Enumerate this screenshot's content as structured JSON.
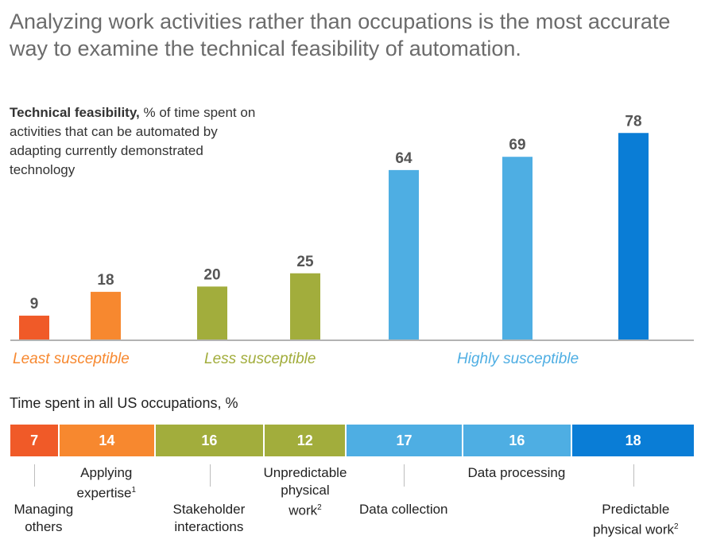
{
  "title": "Analyzing work activities rather than occupations is the most accurate way to examine the technical feasibility of automation.",
  "ylabel_bold": "Technical feasibility,",
  "ylabel_rest": " % of time spent on activities that can be automated by adapting currently demonstrated technology",
  "section2_title": "Time spent in all US occupations, %",
  "group_labels": {
    "least": "Least susceptible",
    "less": "Less susceptible",
    "highly": "Highly susceptible"
  },
  "colors": {
    "red": "#f05a28",
    "orange": "#f7882f",
    "green": "#a2ad3c",
    "lightblue": "#4eaee3",
    "blue": "#0a7dd6"
  },
  "chart_data": [
    {
      "type": "bar",
      "title": "Technical feasibility",
      "ylabel": "% of time spent on activities that can be automated by adapting currently demonstrated technology",
      "categories": [
        "Managing others",
        "Applying expertise",
        "Stakeholder interactions",
        "Unpredictable physical work",
        "Data collection",
        "Data processing",
        "Predictable physical work"
      ],
      "values": [
        9,
        18,
        20,
        25,
        64,
        69,
        78
      ],
      "groups": [
        "Least susceptible",
        "Least susceptible",
        "Less susceptible",
        "Less susceptible",
        "Highly susceptible",
        "Highly susceptible",
        "Highly susceptible"
      ],
      "ylim": [
        0,
        80
      ]
    },
    {
      "type": "bar",
      "title": "Time spent in all US occupations, %",
      "stacked": true,
      "categories": [
        "Managing others",
        "Applying expertise",
        "Stakeholder interactions",
        "Unpredictable physical work",
        "Data collection",
        "Data processing",
        "Predictable physical work"
      ],
      "values": [
        7,
        14,
        16,
        12,
        17,
        16,
        18
      ]
    }
  ],
  "bottom_labels": [
    {
      "line1": "Managing",
      "line2": "others",
      "sup": ""
    },
    {
      "line1": "Applying",
      "line2": "expertise",
      "sup": "1"
    },
    {
      "line1": "Stakeholder",
      "line2": "interactions",
      "sup": ""
    },
    {
      "line1": "Unpredictable",
      "line2": "physical",
      "line3": "work",
      "sup": "2"
    },
    {
      "line1": "Data collection",
      "line2": "",
      "sup": ""
    },
    {
      "line1": "Data processing",
      "line2": "",
      "sup": ""
    },
    {
      "line1": "Predictable",
      "line2": "physical work",
      "sup": "2"
    }
  ]
}
